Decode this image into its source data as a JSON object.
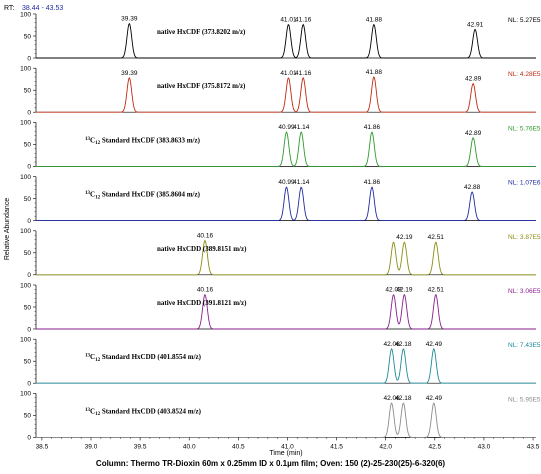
{
  "rt_label": "RT:",
  "rt_range": "38.44 - 43.53",
  "y_axis_label": "Relative Abundance",
  "x_axis_label": "Time (min)",
  "caption": "Column: Thermo TR-Dioxin 60m x 0.25mm ID x 0.1µm film; Oven: 150 (2)-25-230(25)-6-320(6)",
  "chart_data": {
    "type": "line",
    "xlim": [
      38.44,
      43.53
    ],
    "x_ticks": [
      "38.5",
      "39.0",
      "39.5",
      "40.0",
      "40.5",
      "41.0",
      "41.5",
      "42.0",
      "42.5",
      "43.0",
      "43.5"
    ],
    "y_ticks": [
      "0",
      "50",
      "100"
    ],
    "ylim": [
      0,
      100
    ],
    "xlabel": "Time (min)",
    "ylabel": "Relative Abundance",
    "panels": [
      {
        "label": "native HxCDF (373.8202 m/z)",
        "iso": false,
        "color": "#000000",
        "nl": "NL: 5.27E5",
        "peaks": [
          {
            "x": 39.39,
            "y": 78,
            "label": "39.39"
          },
          {
            "x": 41.01,
            "y": 76,
            "label": "41.01"
          },
          {
            "x": 41.16,
            "y": 76,
            "label": "41.16"
          },
          {
            "x": 41.88,
            "y": 76,
            "label": "41.88"
          },
          {
            "x": 42.91,
            "y": 65,
            "label": "42.91"
          }
        ]
      },
      {
        "label": "native HxCDF (375.8172 m/z)",
        "iso": false,
        "color": "#c02a12",
        "nl": "NL: 4.28E5",
        "peaks": [
          {
            "x": 39.39,
            "y": 78,
            "label": "39.39"
          },
          {
            "x": 41.01,
            "y": 78,
            "label": "41.01"
          },
          {
            "x": 41.16,
            "y": 78,
            "label": "41.16"
          },
          {
            "x": 41.88,
            "y": 80,
            "label": "41.88"
          },
          {
            "x": 42.89,
            "y": 65,
            "label": "42.89"
          }
        ]
      },
      {
        "label_pre": "13",
        "label_sub": "C",
        "label_sub2": "12",
        "label": " Standard HxCDF (383.8633 m/z)",
        "iso": true,
        "color": "#2e9a2e",
        "nl": "NL: 5.76E5",
        "peaks": [
          {
            "x": 40.99,
            "y": 78,
            "label": "40.99"
          },
          {
            "x": 41.14,
            "y": 78,
            "label": "41.14"
          },
          {
            "x": 41.86,
            "y": 78,
            "label": "41.86"
          },
          {
            "x": 42.89,
            "y": 65,
            "label": "42.89"
          }
        ]
      },
      {
        "label_pre": "13",
        "label_sub": "C",
        "label_sub2": "12",
        "label": " Standard HxCDF (385.8604 m/z)",
        "iso": true,
        "color": "#1f2aa3",
        "nl": "NL: 1.07E6",
        "peaks": [
          {
            "x": 40.99,
            "y": 76,
            "label": "40.99"
          },
          {
            "x": 41.14,
            "y": 76,
            "label": "41.14"
          },
          {
            "x": 41.86,
            "y": 76,
            "label": "41.86"
          },
          {
            "x": 42.88,
            "y": 65,
            "label": "42.88"
          }
        ]
      },
      {
        "label": "native HxCDD (389.8151 m/z)",
        "iso": false,
        "color": "#8c8c16",
        "nl": "NL: 3.87E5",
        "peaks": [
          {
            "x": 40.16,
            "y": 78,
            "label": "40.16"
          },
          {
            "x": 42.08,
            "y": 74,
            "label": ""
          },
          {
            "x": 42.19,
            "y": 74,
            "label": "42.19"
          },
          {
            "x": 42.51,
            "y": 74,
            "label": "42.51"
          }
        ]
      },
      {
        "label": "native HxCDD (391.8121 m/z)",
        "iso": false,
        "color": "#8a1f8f",
        "nl": "NL: 3.06E5",
        "peaks": [
          {
            "x": 40.16,
            "y": 78,
            "label": "40.16"
          },
          {
            "x": 42.08,
            "y": 78,
            "label": "42.08"
          },
          {
            "x": 42.19,
            "y": 78,
            "label": "42.19"
          },
          {
            "x": 42.51,
            "y": 78,
            "label": "42.51"
          }
        ]
      },
      {
        "label_pre": "13",
        "label_sub": "C",
        "label_sub2": "12",
        "label": " Standard HxCDD (401.8554 m/z)",
        "iso": true,
        "color": "#1c8a98",
        "nl": "NL: 7.43E5",
        "peaks": [
          {
            "x": 42.06,
            "y": 78,
            "label": "42.06"
          },
          {
            "x": 42.18,
            "y": 78,
            "label": "42.18"
          },
          {
            "x": 42.49,
            "y": 78,
            "label": "42.49"
          }
        ]
      },
      {
        "label_pre": "13",
        "label_sub": "C",
        "label_sub2": "12",
        "label": " Standard HxCDD (403.8524 m/z)",
        "iso": true,
        "color": "#8c8c8c",
        "nl": "NL: 5.95E5",
        "peaks": [
          {
            "x": 42.06,
            "y": 78,
            "label": "42.06"
          },
          {
            "x": 42.18,
            "y": 78,
            "label": "42.18"
          },
          {
            "x": 42.49,
            "y": 78,
            "label": "42.49"
          }
        ]
      }
    ]
  }
}
